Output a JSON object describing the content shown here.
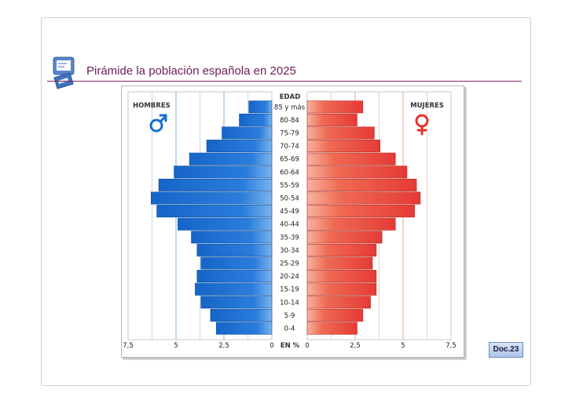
{
  "slide": {
    "title": "Pirámide la población española en 2025",
    "badge": "Doc.23"
  },
  "colors": {
    "male": "#1e6fd0",
    "female": "#e8453c",
    "title": "#6b1e5a"
  },
  "icons": {
    "slide": "slide-document-icon",
    "male": "male-symbol",
    "female": "female-symbol"
  },
  "chart_data": {
    "type": "bar",
    "subtype": "population-pyramid",
    "orientation": "horizontal",
    "title": "",
    "age_axis_title": "EDAD",
    "unit_label": "EN %",
    "left_label": "HOMBRES",
    "right_label": "MUJERES",
    "categories": [
      "0-4",
      "5-9",
      "10-14",
      "15-19",
      "20-24",
      "25-29",
      "30-34",
      "35-39",
      "40-44",
      "45-49",
      "50-54",
      "55-59",
      "60-64",
      "65-69",
      "70-74",
      "75-79",
      "80-84",
      "85 y más"
    ],
    "series": [
      {
        "name": "HOMBRES",
        "values": [
          2.9,
          3.2,
          3.7,
          4.0,
          3.9,
          3.7,
          3.9,
          4.2,
          4.9,
          6.0,
          6.3,
          5.9,
          5.1,
          4.3,
          3.4,
          2.6,
          1.7,
          1.2
        ]
      },
      {
        "name": "MUJERES",
        "values": [
          2.6,
          2.9,
          3.3,
          3.6,
          3.6,
          3.4,
          3.6,
          3.9,
          4.6,
          5.6,
          5.9,
          5.7,
          5.2,
          4.6,
          3.8,
          3.5,
          2.6,
          2.9
        ]
      }
    ],
    "xlim": [
      0,
      7.5
    ],
    "male_ticks": [
      "7,5",
      "5",
      "2,5",
      "0"
    ],
    "female_ticks": [
      "0",
      "2,5",
      "5",
      "7,5"
    ],
    "grid": true
  }
}
